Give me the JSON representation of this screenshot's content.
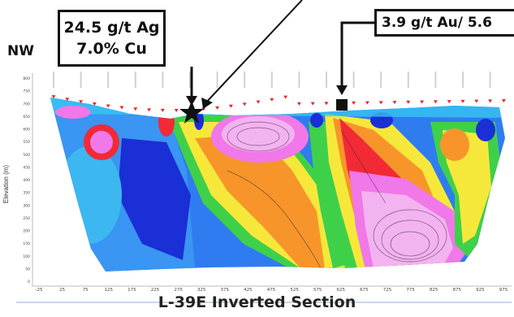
{
  "header": {
    "direction_label": "NW"
  },
  "callouts": [
    {
      "line1": "24.5 g/t Ag",
      "line2": "7.0% Cu"
    },
    {
      "text": "3.9 g/t Au/ 5.6"
    }
  ],
  "axis": {
    "y_label": "Elevation (m)",
    "y_ticks": [
      "800",
      "750",
      "700",
      "650",
      "600",
      "550",
      "500",
      "450",
      "400",
      "350",
      "300",
      "250",
      "200",
      "150",
      "100",
      "50",
      "0"
    ],
    "x_ticks": [
      "-25",
      "25",
      "75",
      "125",
      "175",
      "225",
      "275",
      "325",
      "375",
      "425",
      "475",
      "525",
      "575",
      "625",
      "675",
      "725",
      "775",
      "825",
      "875",
      "925",
      "975"
    ]
  },
  "footer": {
    "title": "L-39E Inverted Section"
  },
  "colors": {
    "deep_blue": "#1a2fd6",
    "blue": "#2f7cf0",
    "cyan": "#38c9f2",
    "green": "#3fd04a",
    "yellow": "#f6e83a",
    "orange": "#f7952a",
    "red": "#f22a36",
    "magenta": "#f078e8",
    "pink": "#f3b2f0",
    "station_marker": "#e8262a"
  },
  "markers": {
    "star_icon": "star-icon",
    "square_icon": "square-icon"
  }
}
